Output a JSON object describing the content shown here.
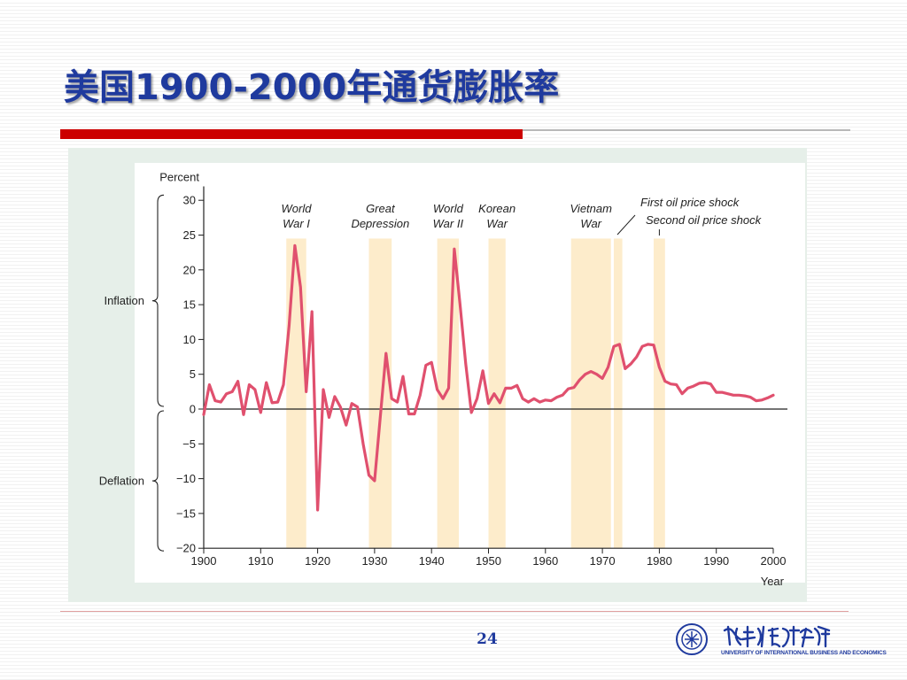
{
  "slide": {
    "title": "美国1900-2000年通货膨胀率",
    "page_number": "24",
    "logo_text_en": "UNIVERSITY OF INTERNATIONAL BUSINESS AND ECONOMICS",
    "accent_color": "#cc0000",
    "title_color": "#1f3a9e"
  },
  "chart_data": {
    "type": "line",
    "ylabel": "Percent",
    "xlabel": "Year",
    "xlim": [
      1900,
      2000
    ],
    "ylim": [
      -20,
      32
    ],
    "xticks": [
      1900,
      1910,
      1920,
      1930,
      1940,
      1950,
      1960,
      1970,
      1980,
      1990,
      2000
    ],
    "yticks": [
      30,
      25,
      20,
      15,
      10,
      5,
      0,
      -5,
      -10,
      -15,
      -20
    ],
    "ytick_labels": [
      "30",
      "25",
      "20",
      "15",
      "10",
      "5",
      "0",
      "−5",
      "−10",
      "−15",
      "−20"
    ],
    "grid": false,
    "line_color": "#e0506e",
    "band_color": "#fdeccb",
    "ranges": [
      {
        "label": "Inflation",
        "from": 0,
        "to": 31
      },
      {
        "label": "Deflation",
        "from": -20,
        "to": 0
      }
    ],
    "events": [
      {
        "lines": [
          "World",
          "War I"
        ],
        "start": 1914.5,
        "end": 1918
      },
      {
        "lines": [
          "Great",
          "Depression"
        ],
        "start": 1929,
        "end": 1933
      },
      {
        "lines": [
          "World",
          "War II"
        ],
        "start": 1941,
        "end": 1944.8
      },
      {
        "lines": [
          "Korean",
          "War"
        ],
        "start": 1950,
        "end": 1953
      },
      {
        "lines": [
          "Vietnam",
          "War"
        ],
        "start": 1964.5,
        "end": 1971.5
      },
      {
        "lines": [
          "First oil price shock"
        ],
        "start": 1972,
        "end": 1973.5
      },
      {
        "lines": [
          "Second oil price shock"
        ],
        "start": 1979,
        "end": 1981
      }
    ],
    "series": [
      {
        "x": [
          1900,
          1901,
          1902,
          1903,
          1904,
          1905,
          1906,
          1907,
          1908,
          1909,
          1910,
          1911,
          1912,
          1913,
          1914,
          1915,
          1916,
          1917,
          1918,
          1919,
          1920,
          1921,
          1922,
          1923,
          1924,
          1925,
          1926,
          1927,
          1928,
          1929,
          1930,
          1931,
          1932,
          1933,
          1934,
          1935,
          1936,
          1937,
          1938,
          1939,
          1940,
          1941,
          1942,
          1943,
          1944,
          1945,
          1946,
          1947,
          1948,
          1949,
          1950,
          1951,
          1952,
          1953,
          1954,
          1955,
          1956,
          1957,
          1958,
          1959,
          1960,
          1961,
          1962,
          1963,
          1964,
          1965,
          1966,
          1967,
          1968,
          1969,
          1970,
          1971,
          1972,
          1973,
          1974,
          1975,
          1976,
          1977,
          1978,
          1979,
          1980,
          1981,
          1982,
          1983,
          1984,
          1985,
          1986,
          1987,
          1988,
          1989,
          1990,
          1991,
          1992,
          1993,
          1994,
          1995,
          1996,
          1997,
          1998,
          1999,
          2000
        ],
        "values": [
          -0.8,
          3.5,
          1.2,
          1.0,
          2.2,
          2.5,
          4.0,
          -0.8,
          3.5,
          2.8,
          -0.5,
          3.8,
          0.9,
          1.0,
          3.5,
          12.0,
          23.5,
          17.5,
          2.5,
          14.0,
          -14.5,
          2.8,
          -1.2,
          1.8,
          0.3,
          -2.3,
          0.8,
          0.3,
          -5.0,
          -9.5,
          -10.3,
          -1.2,
          8.0,
          1.5,
          1.0,
          4.7,
          -0.7,
          -0.7,
          2.0,
          6.3,
          6.7,
          2.8,
          1.5,
          3.0,
          23.0,
          15.0,
          6.5,
          -0.5,
          1.5,
          5.5,
          0.8,
          2.2,
          0.9,
          3.0,
          3.0,
          3.4,
          1.5,
          1.0,
          1.5,
          1.0,
          1.3,
          1.2,
          1.7,
          2.0,
          2.9,
          3.1,
          4.2,
          5.0,
          5.4,
          5.0,
          4.4,
          6.0,
          9.0,
          9.3,
          5.8,
          6.5,
          7.5,
          9.0,
          9.3,
          9.2,
          6.0,
          4.0,
          3.6,
          3.5,
          2.2,
          3.0,
          3.3,
          3.7,
          3.8,
          3.6,
          2.4,
          2.4,
          2.2,
          2.0,
          2.0,
          1.9,
          1.7,
          1.2,
          1.3,
          1.6,
          2.0
        ]
      }
    ]
  }
}
